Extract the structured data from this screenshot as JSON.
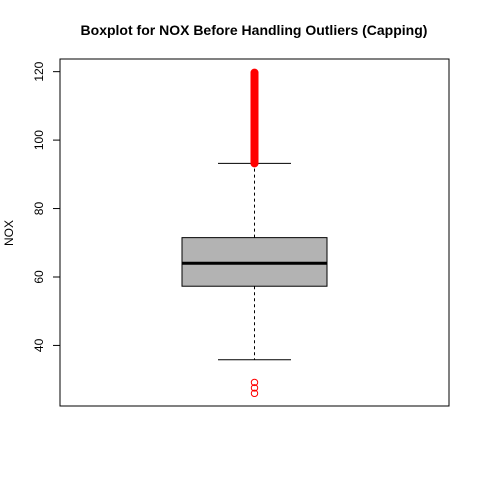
{
  "chart_data": {
    "type": "boxplot",
    "title": "Boxplot for NOX Before Handling Outliers (Capping)",
    "xlabel": "",
    "ylabel": "NOX",
    "ylim": [
      22.3,
      123.7
    ],
    "yticks": [
      40,
      60,
      80,
      100,
      120
    ],
    "grid": false,
    "box": {
      "lower_whisker": 35.8,
      "q1": 57.3,
      "median": 64.0,
      "q3": 71.5,
      "upper_whisker": 93.2,
      "box_color": "#b3b3b3",
      "outlier_color": "#ff0000",
      "upper_outliers_range": [
        93.2,
        119.8
      ],
      "lower_outliers": [
        29.2,
        27.6,
        26.0
      ]
    }
  }
}
